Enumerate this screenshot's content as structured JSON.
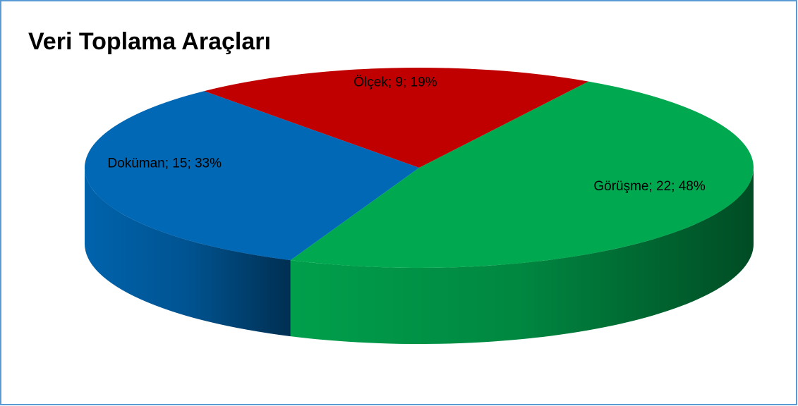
{
  "chart_data": {
    "type": "pie3d",
    "title": "Veri Toplama Araçları",
    "categories": [
      "Ölçek",
      "Görüşme",
      "Doküman"
    ],
    "values": [
      9,
      22,
      15
    ],
    "value_labels": [
      "Ölçek; 9; 19%",
      "Görüşme; 22; 48%",
      "Doküman; 15; 33%"
    ],
    "colors": [
      "#c00000",
      "#00a850",
      "#0068b5"
    ]
  }
}
